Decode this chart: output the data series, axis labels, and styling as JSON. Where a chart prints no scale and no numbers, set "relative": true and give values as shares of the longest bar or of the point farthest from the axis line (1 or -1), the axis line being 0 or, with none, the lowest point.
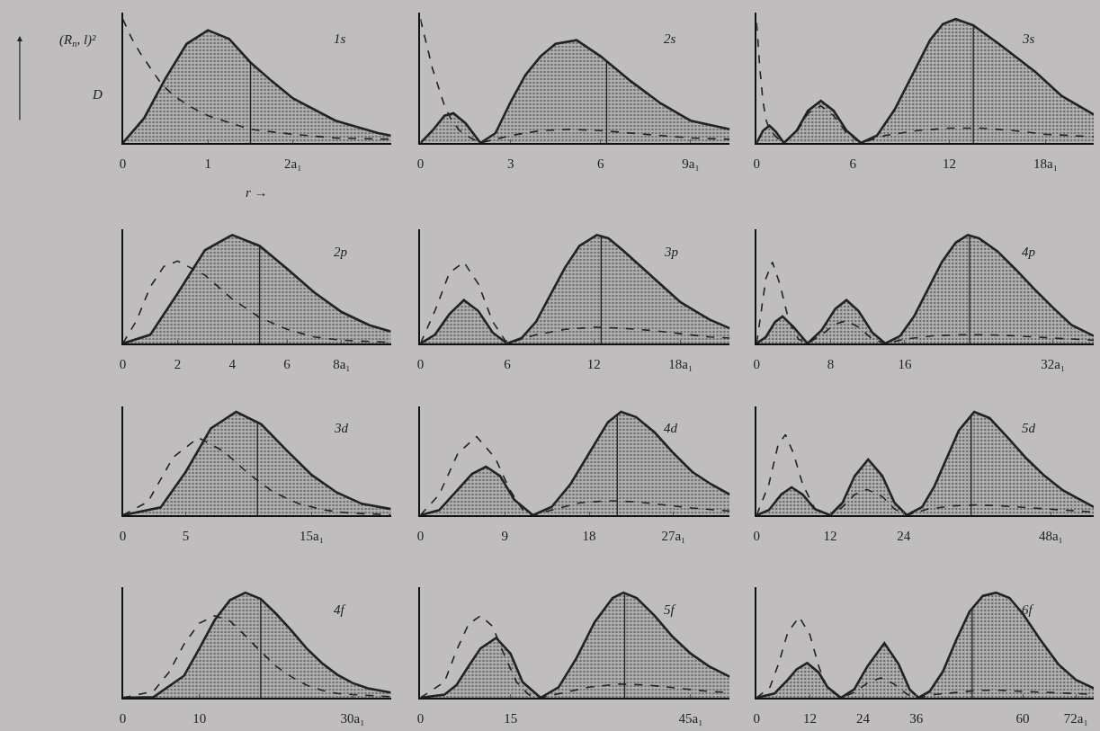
{
  "chart_data": [
    {
      "type": "area",
      "title": "1s",
      "relative": true,
      "xlabel": "r →",
      "annotations": [
        "(R$_{n}$, l)²",
        "D"
      ],
      "xlim": [
        0,
        3.15
      ],
      "xticks": [
        0,
        1,
        {
          "value": 2,
          "label": "2a₁"
        }
      ],
      "ref_lines": [
        {
          "axis": "x",
          "value": 1.5
        }
      ],
      "series": [
        {
          "type": "area",
          "color": "#222222",
          "x": [
            0,
            0.25,
            0.5,
            0.75,
            1,
            1.25,
            1.5,
            1.75,
            2,
            2.5,
            3,
            3.15
          ],
          "values": [
            0,
            0.2,
            0.52,
            0.8,
            0.91,
            0.84,
            0.65,
            0.5,
            0.36,
            0.18,
            0.08,
            0.06
          ]
        },
        {
          "type": "line",
          "line_style": "dashed",
          "color": "#222222",
          "x": [
            0,
            0.1,
            0.2,
            0.3,
            0.45,
            0.6,
            0.8,
            1,
            1.5,
            2,
            2.5,
            3.15
          ],
          "values": [
            1,
            0.85,
            0.73,
            0.63,
            0.48,
            0.38,
            0.29,
            0.22,
            0.11,
            0.07,
            0.04,
            0.03
          ]
        }
      ]
    },
    {
      "type": "area",
      "title": "2s",
      "relative": true,
      "xlim": [
        0,
        10.3
      ],
      "xticks": [
        0,
        3,
        6,
        {
          "value": 9,
          "label": "9a₁"
        }
      ],
      "ref_lines": [
        {
          "axis": "x",
          "value": 6.2
        }
      ],
      "series": [
        {
          "type": "area",
          "color": "#222222",
          "x": [
            0,
            0.4,
            0.8,
            1.1,
            1.5,
            2,
            2.5,
            3,
            3.5,
            4,
            4.5,
            5.2,
            6,
            7,
            8,
            9,
            10.3
          ],
          "values": [
            0,
            0.1,
            0.22,
            0.24,
            0.16,
            0,
            0.08,
            0.33,
            0.55,
            0.7,
            0.8,
            0.83,
            0.7,
            0.5,
            0.32,
            0.18,
            0.11
          ]
        },
        {
          "type": "line",
          "line_style": "dashed",
          "color": "#222222",
          "x": [
            0,
            0.2,
            0.4,
            0.6,
            0.8,
            1,
            1.3,
            1.6,
            2,
            2.5,
            3,
            4,
            5,
            6,
            7,
            8,
            9,
            10.3
          ],
          "values": [
            1,
            0.8,
            0.6,
            0.45,
            0.3,
            0.2,
            0.1,
            0.05,
            0,
            0.03,
            0.06,
            0.1,
            0.11,
            0.1,
            0.08,
            0.06,
            0.04,
            0.03
          ]
        }
      ]
    },
    {
      "type": "area",
      "title": "3s",
      "relative": true,
      "xlim": [
        0,
        21
      ],
      "xticks": [
        0,
        6,
        12,
        {
          "value": 18,
          "label": "18a₁"
        }
      ],
      "ref_lines": [
        {
          "axis": "x",
          "value": 13.5
        }
      ],
      "series": [
        {
          "type": "area",
          "color": "#222222",
          "x": [
            0,
            0.4,
            0.8,
            1.2,
            1.7,
            2.5,
            3.2,
            4,
            4.8,
            5.6,
            6.5,
            7.5,
            8.6,
            9.7,
            10.8,
            11.6,
            12.4,
            13.5,
            15.2,
            17.4,
            19,
            21
          ],
          "values": [
            0,
            0.1,
            0.14,
            0.09,
            0,
            0.1,
            0.26,
            0.34,
            0.26,
            0.1,
            0,
            0.06,
            0.27,
            0.55,
            0.83,
            0.96,
            1,
            0.95,
            0.79,
            0.57,
            0.38,
            0.23
          ]
        },
        {
          "type": "line",
          "line_style": "dashed",
          "color": "#222222",
          "x": [
            0,
            0.2,
            0.4,
            0.6,
            0.8,
            1.2,
            1.7,
            2.5,
            3.2,
            4,
            4.8,
            5.6,
            6.5,
            8,
            10,
            12,
            14,
            16,
            18,
            21
          ],
          "values": [
            0.97,
            0.6,
            0.33,
            0.18,
            0.11,
            0.05,
            0,
            0.09,
            0.24,
            0.3,
            0.22,
            0.08,
            0,
            0.06,
            0.1,
            0.12,
            0.12,
            0.1,
            0.07,
            0.05
          ]
        }
      ]
    },
    {
      "type": "area",
      "title": "2p",
      "relative": true,
      "xlim": [
        0,
        9.8
      ],
      "xticks": [
        0,
        2,
        4,
        6,
        {
          "value": 8,
          "label": "8a₁"
        }
      ],
      "ref_lines": [
        {
          "axis": "x",
          "value": 5
        }
      ],
      "series": [
        {
          "type": "area",
          "color": "#222222",
          "x": [
            0,
            1,
            2,
            3,
            4,
            5,
            6,
            7,
            8,
            9,
            9.8
          ],
          "values": [
            0,
            0.08,
            0.46,
            0.86,
            1,
            0.9,
            0.69,
            0.47,
            0.29,
            0.17,
            0.11
          ]
        },
        {
          "type": "line",
          "line_style": "dashed",
          "color": "#222222",
          "x": [
            0,
            0.5,
            1,
            1.5,
            2,
            3,
            4,
            5,
            6,
            7,
            8,
            9.8
          ],
          "values": [
            0,
            0.21,
            0.52,
            0.71,
            0.76,
            0.63,
            0.41,
            0.24,
            0.13,
            0.06,
            0.03,
            0.01
          ]
        }
      ]
    },
    {
      "type": "area",
      "title": "3p",
      "relative": true,
      "xlim": [
        0,
        21.4
      ],
      "xticks": [
        0,
        6,
        12,
        {
          "value": 18,
          "label": "18a₁"
        }
      ],
      "ref_lines": [
        {
          "axis": "x",
          "value": 12.5
        }
      ],
      "series": [
        {
          "type": "area",
          "color": "#222222",
          "x": [
            0,
            1,
            2,
            3,
            4,
            5,
            6,
            7,
            8,
            9,
            10,
            11,
            12.2,
            13,
            14,
            15,
            16,
            17,
            18,
            19,
            20,
            21.4
          ],
          "values": [
            0,
            0.08,
            0.27,
            0.4,
            0.3,
            0.1,
            0,
            0.05,
            0.2,
            0.45,
            0.7,
            0.9,
            1,
            0.97,
            0.86,
            0.74,
            0.62,
            0.5,
            0.38,
            0.3,
            0.22,
            0.14
          ]
        },
        {
          "type": "line",
          "line_style": "dashed",
          "color": "#222222",
          "x": [
            0,
            1,
            2,
            3,
            4,
            5,
            6,
            7,
            8,
            10,
            12,
            14,
            16,
            18,
            20,
            21.4
          ],
          "values": [
            0,
            0.3,
            0.65,
            0.75,
            0.55,
            0.2,
            0,
            0.04,
            0.08,
            0.13,
            0.15,
            0.14,
            0.12,
            0.09,
            0.06,
            0.05
          ]
        }
      ]
    },
    {
      "type": "area",
      "title": "4p",
      "relative": true,
      "xlim": [
        0,
        36.4
      ],
      "xticks": [
        0,
        8,
        16,
        {
          "value": 32,
          "label": "32a₁"
        }
      ],
      "ref_lines": [
        {
          "axis": "x",
          "value": 23
        }
      ],
      "series": [
        {
          "type": "area",
          "color": "#222222",
          "x": [
            0,
            1,
            2,
            2.8,
            4,
            5.5,
            7,
            8.5,
            9.7,
            11,
            12.5,
            13.9,
            15.5,
            17,
            18.5,
            20,
            21.5,
            22.8,
            24,
            26,
            28,
            30,
            32,
            34,
            36.4
          ],
          "values": [
            0,
            0.06,
            0.2,
            0.25,
            0.15,
            0,
            0.12,
            0.32,
            0.4,
            0.3,
            0.1,
            0,
            0.07,
            0.25,
            0.5,
            0.75,
            0.93,
            1,
            0.97,
            0.85,
            0.68,
            0.5,
            0.33,
            0.17,
            0.07
          ]
        },
        {
          "type": "line",
          "line_style": "dashed",
          "color": "#222222",
          "x": [
            0,
            0.5,
            1,
            1.7,
            2.5,
            3.5,
            4.5,
            5.5,
            7,
            8.5,
            9.7,
            11,
            12.5,
            13.9,
            16,
            19,
            22,
            25,
            28,
            32,
            36.4
          ],
          "values": [
            0,
            0.3,
            0.6,
            0.75,
            0.55,
            0.2,
            0.04,
            0,
            0.08,
            0.18,
            0.21,
            0.15,
            0.04,
            0,
            0.04,
            0.07,
            0.08,
            0.08,
            0.07,
            0.05,
            0.03
          ]
        }
      ]
    },
    {
      "type": "area",
      "title": "3d",
      "relative": true,
      "xlim": [
        0,
        21.3
      ],
      "xticks": [
        0,
        5,
        {
          "value": 15,
          "label": "15a₁"
        }
      ],
      "ref_lines": [
        {
          "axis": "x",
          "value": 10.7
        }
      ],
      "series": [
        {
          "type": "area",
          "color": "#222222",
          "x": [
            0,
            3,
            5,
            7,
            9,
            11,
            13,
            15,
            17,
            19,
            21.3
          ],
          "values": [
            0,
            0.075,
            0.42,
            0.84,
            1,
            0.88,
            0.63,
            0.39,
            0.22,
            0.11,
            0.06
          ]
        },
        {
          "type": "line",
          "line_style": "dashed",
          "color": "#222222",
          "x": [
            0,
            2,
            4,
            6,
            8,
            10,
            12,
            14,
            16,
            18,
            21.3
          ],
          "values": [
            0,
            0.13,
            0.56,
            0.75,
            0.62,
            0.4,
            0.22,
            0.11,
            0.05,
            0.02,
            0.005
          ]
        }
      ]
    },
    {
      "type": "area",
      "title": "4d",
      "relative": true,
      "xlim": [
        0,
        33
      ],
      "xticks": [
        0,
        9,
        18,
        {
          "value": 27,
          "label": "27a₁"
        }
      ],
      "ref_lines": [
        {
          "axis": "x",
          "value": 21
        }
      ],
      "series": [
        {
          "type": "area",
          "color": "#222222",
          "x": [
            0,
            2,
            4,
            5.5,
            7,
            8.5,
            10,
            12,
            14,
            16,
            18,
            20,
            21.4,
            23,
            25,
            27,
            29,
            31,
            33
          ],
          "values": [
            0,
            0.05,
            0.25,
            0.4,
            0.47,
            0.38,
            0.15,
            0,
            0.08,
            0.3,
            0.6,
            0.9,
            1,
            0.95,
            0.8,
            0.6,
            0.42,
            0.3,
            0.2
          ]
        },
        {
          "type": "line",
          "line_style": "dashed",
          "color": "#222222",
          "x": [
            0,
            2,
            4,
            6,
            8,
            9.5,
            11,
            12,
            14,
            17,
            20,
            23,
            26,
            29,
            33
          ],
          "values": [
            0,
            0.2,
            0.6,
            0.76,
            0.55,
            0.25,
            0.04,
            0,
            0.05,
            0.12,
            0.14,
            0.13,
            0.1,
            0.07,
            0.04
          ]
        }
      ]
    },
    {
      "type": "area",
      "title": "5d",
      "relative": true,
      "xlim": [
        0,
        55
      ],
      "xticks": [
        0,
        12,
        24,
        {
          "value": 48,
          "label": "48a₁"
        }
      ],
      "ref_lines": [
        {
          "axis": "x",
          "value": 35
        }
      ],
      "series": [
        {
          "type": "area",
          "color": "#222222",
          "x": [
            0,
            2,
            4,
            5.7,
            7.5,
            9.5,
            12,
            14,
            16,
            18.2,
            20.5,
            22.5,
            24.5,
            27,
            29,
            31,
            33,
            35.5,
            38,
            41,
            44,
            47,
            50,
            55
          ],
          "values": [
            0,
            0.05,
            0.2,
            0.27,
            0.2,
            0.06,
            0,
            0.12,
            0.38,
            0.54,
            0.38,
            0.12,
            0,
            0.08,
            0.28,
            0.55,
            0.82,
            1,
            0.94,
            0.75,
            0.55,
            0.38,
            0.24,
            0.08
          ]
        },
        {
          "type": "line",
          "line_style": "dashed",
          "color": "#222222",
          "x": [
            0,
            2,
            3.5,
            4.7,
            6,
            7.5,
            9.5,
            12,
            14,
            16,
            18,
            20.5,
            22.5,
            24.5,
            28,
            32,
            36,
            40,
            45,
            50,
            55
          ],
          "values": [
            0,
            0.3,
            0.68,
            0.78,
            0.6,
            0.3,
            0.06,
            0,
            0.08,
            0.2,
            0.25,
            0.18,
            0.06,
            0,
            0.06,
            0.09,
            0.1,
            0.09,
            0.07,
            0.05,
            0.03
          ]
        }
      ]
    },
    {
      "type": "area",
      "title": "4f",
      "relative": true,
      "xlim": [
        0,
        35
      ],
      "xticks": [
        0,
        10,
        {
          "value": 30,
          "label": "30a₁"
        }
      ],
      "ref_lines": [
        {
          "axis": "x",
          "value": 18
        }
      ],
      "series": [
        {
          "type": "area",
          "color": "#222222",
          "x": [
            0,
            4,
            8,
            10,
            12,
            14,
            16,
            18,
            20,
            22,
            24,
            26,
            28,
            30,
            32,
            35
          ],
          "values": [
            0,
            0.006,
            0.21,
            0.47,
            0.74,
            0.93,
            1,
            0.94,
            0.8,
            0.64,
            0.47,
            0.33,
            0.22,
            0.14,
            0.09,
            0.05
          ]
        },
        {
          "type": "line",
          "line_style": "dashed",
          "color": "#222222",
          "x": [
            0,
            4,
            6,
            8,
            10,
            12,
            14,
            16,
            18,
            20,
            22,
            24,
            26,
            28,
            30,
            35
          ],
          "values": [
            0,
            0.06,
            0.24,
            0.51,
            0.71,
            0.78,
            0.73,
            0.59,
            0.44,
            0.3,
            0.2,
            0.12,
            0.07,
            0.04,
            0.03,
            0.01
          ]
        }
      ]
    },
    {
      "type": "area",
      "title": "5f",
      "relative": true,
      "xlim": [
        0,
        51.5
      ],
      "xticks": [
        0,
        15,
        {
          "value": 45,
          "label": "45a₁"
        }
      ],
      "ref_lines": [
        {
          "axis": "x",
          "value": 34
        }
      ],
      "series": [
        {
          "type": "area",
          "color": "#222222",
          "x": [
            0,
            4,
            6,
            8,
            10,
            12.6,
            15,
            17,
            20,
            23,
            26,
            29,
            32,
            33.8,
            36,
            39,
            42,
            45,
            48,
            51.5
          ],
          "values": [
            0,
            0.03,
            0.12,
            0.3,
            0.47,
            0.57,
            0.42,
            0.15,
            0,
            0.1,
            0.38,
            0.72,
            0.95,
            1,
            0.95,
            0.78,
            0.58,
            0.42,
            0.3,
            0.2
          ]
        },
        {
          "type": "line",
          "line_style": "dashed",
          "color": "#222222",
          "x": [
            0,
            4,
            6,
            8,
            10,
            12,
            14,
            16,
            18,
            20,
            24,
            28,
            33,
            38,
            43,
            48,
            51.5
          ],
          "values": [
            0,
            0.15,
            0.45,
            0.7,
            0.78,
            0.68,
            0.4,
            0.15,
            0.03,
            0,
            0.05,
            0.1,
            0.13,
            0.12,
            0.09,
            0.06,
            0.05
          ]
        }
      ]
    },
    {
      "type": "area",
      "title": "6f",
      "relative": true,
      "xlim": [
        0,
        76
      ],
      "xticks": [
        0,
        12,
        24,
        36,
        60,
        {
          "value": 72,
          "label": "72a₁"
        }
      ],
      "ref_lines": [
        {
          "axis": "x",
          "value": 48.6
        }
      ],
      "series": [
        {
          "type": "area",
          "color": "#222222",
          "x": [
            0,
            4,
            7,
            9,
            11.4,
            14,
            16,
            19,
            22,
            25,
            28.8,
            32,
            34.5,
            36.5,
            39,
            42,
            45,
            48,
            51,
            54,
            57,
            60,
            64,
            68,
            72,
            76
          ],
          "values": [
            0,
            0.04,
            0.17,
            0.27,
            0.33,
            0.24,
            0.1,
            0,
            0.08,
            0.3,
            0.52,
            0.32,
            0.08,
            0,
            0.06,
            0.25,
            0.55,
            0.82,
            0.97,
            1,
            0.95,
            0.8,
            0.55,
            0.32,
            0.17,
            0.09
          ]
        },
        {
          "type": "line",
          "line_style": "dashed",
          "color": "#222222",
          "x": [
            0,
            3,
            5,
            7,
            9.6,
            12,
            14,
            16,
            19,
            22,
            25,
            28,
            31,
            34,
            36.5,
            40,
            45,
            50,
            55,
            60,
            66,
            72,
            76
          ],
          "values": [
            0,
            0.1,
            0.33,
            0.62,
            0.77,
            0.6,
            0.3,
            0.08,
            0,
            0.05,
            0.14,
            0.19,
            0.13,
            0.03,
            0,
            0.03,
            0.05,
            0.07,
            0.07,
            0.06,
            0.05,
            0.04,
            0.03
          ]
        }
      ]
    }
  ]
}
